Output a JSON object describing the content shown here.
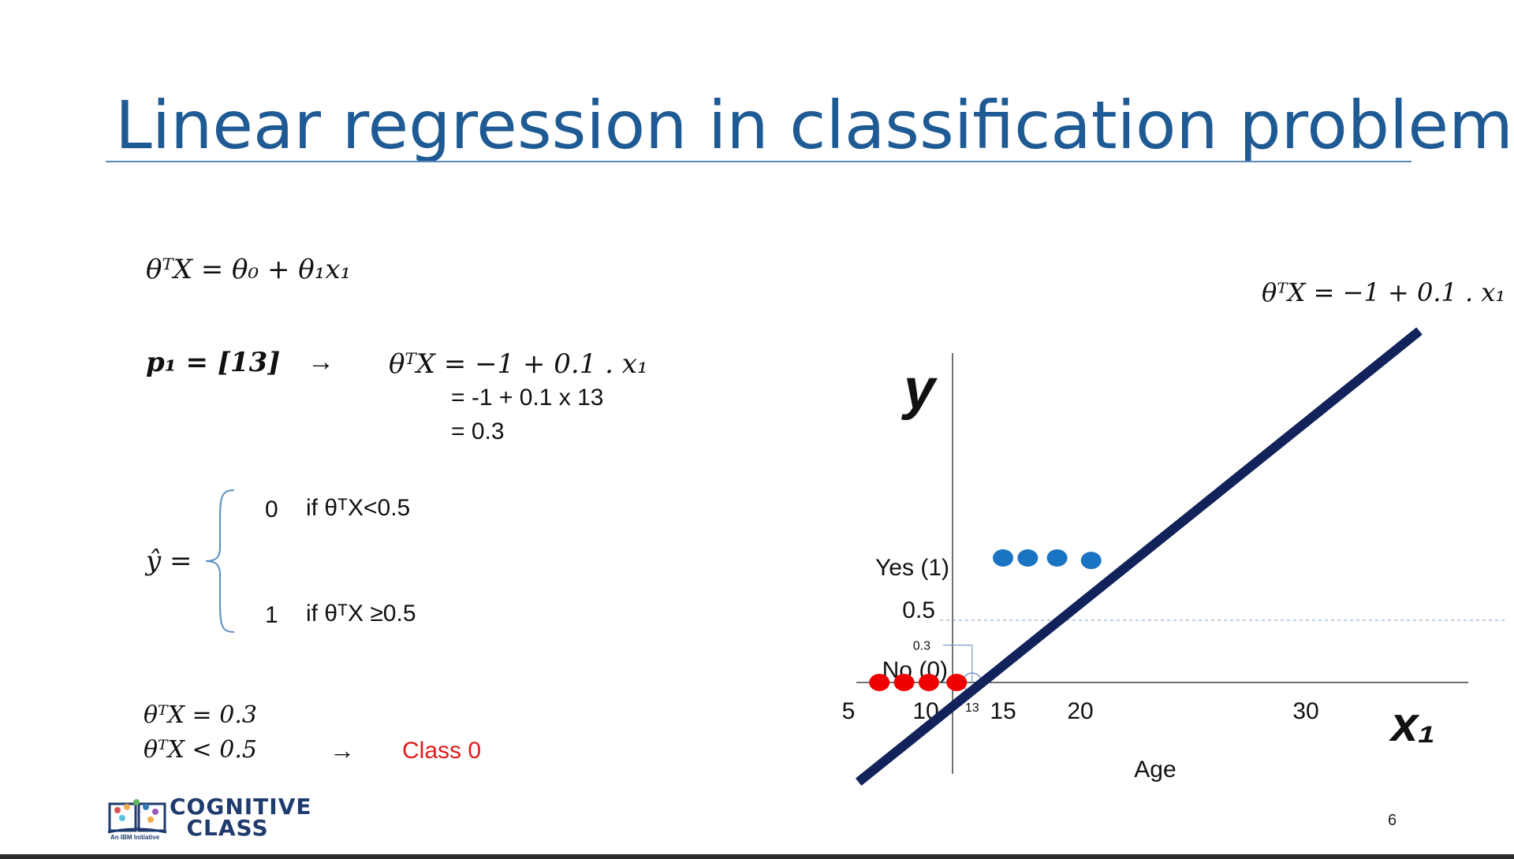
{
  "slide": {
    "title": "Linear regression in classification problems?",
    "page_number": "6"
  },
  "equations": {
    "model": "θᵀX = θ₀ + θ₁x₁",
    "p1_lhs": "p₁ = [13]",
    "arrow": "→",
    "p1_rhs_1": "θᵀX = −1 + 0.1 . x₁",
    "p1_rhs_2": "= -1 + 0.1 x 13",
    "p1_rhs_3": "= 0.3",
    "yhat_lhs": "ŷ =",
    "case0_value": "0",
    "case0_cond": "if θᵀX<0.5",
    "case1_value": "1",
    "case1_cond": "if θᵀX ≥0.5",
    "result_1": "θᵀX = 0.3",
    "result_2": "θᵀX  <  0.5",
    "result_arrow": "→",
    "result_class": "Class 0",
    "line_eq": "θᵀX = −1 + 0.1 . x₁"
  },
  "chart_data": {
    "type": "scatter",
    "xlabel": "Age",
    "x_axis_symbol": "x₁",
    "y_axis_symbol": "y",
    "x_ticks": [
      5,
      10,
      15,
      20,
      30
    ],
    "x_tick_labels": [
      "5",
      "10",
      "15",
      "20",
      "30"
    ],
    "y_tick_labels": [
      "No (0)",
      "0.3",
      "0.5",
      "Yes (1)"
    ],
    "y_tick_values": [
      0,
      0.3,
      0.5,
      1
    ],
    "marked_x": "13",
    "marked_y": "0.3",
    "threshold": 0.5,
    "series": [
      {
        "name": "",
        "color": "#ef0000",
        "points": [
          [
            7,
            0
          ],
          [
            8.6,
            0
          ],
          [
            10.2,
            0
          ],
          [
            12,
            0
          ]
        ]
      },
      {
        "name": "",
        "color": "#1b73c4",
        "points": [
          [
            15,
            1
          ],
          [
            16.6,
            1
          ],
          [
            18.5,
            1
          ],
          [
            20.7,
            0.98
          ]
        ]
      }
    ],
    "regression_line": {
      "intercept": -1,
      "slope": 0.1,
      "color": "#12225a"
    },
    "highlight_point": [
      13,
      0
    ]
  }
}
